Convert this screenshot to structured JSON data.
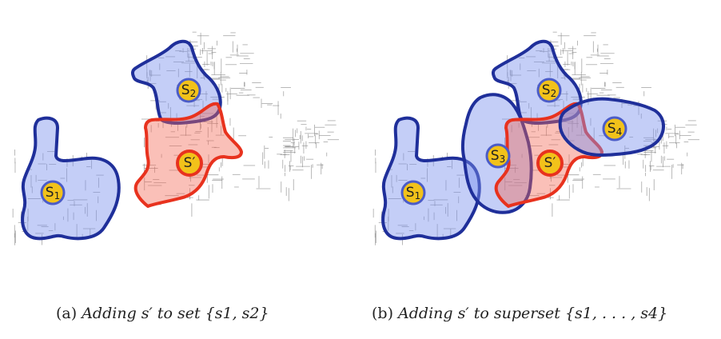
{
  "panels": [
    {
      "id": "a",
      "caption_tag": "(a)",
      "caption_text": "Adding s′ to set {s1, s2}",
      "nodes": [
        {
          "label": "S1",
          "kind": "existing"
        },
        {
          "label": "S2",
          "kind": "existing"
        },
        {
          "label": "S′",
          "kind": "new"
        }
      ]
    },
    {
      "id": "b",
      "caption_tag": "(b)",
      "caption_text": "Adding s′ to superset {s1, . . . , s4}",
      "nodes": [
        {
          "label": "S1",
          "kind": "existing"
        },
        {
          "label": "S2",
          "kind": "existing"
        },
        {
          "label": "S3",
          "kind": "existing"
        },
        {
          "label": "S4",
          "kind": "existing"
        },
        {
          "label": "S′",
          "kind": "new"
        }
      ]
    }
  ],
  "colors": {
    "region_fill_blue": "#7c92ee",
    "region_stroke_blue": "#1f2f9a",
    "region_fill_red": "#f26a55",
    "region_stroke_red": "#e8321e",
    "node_fill": "#f2c21a"
  }
}
